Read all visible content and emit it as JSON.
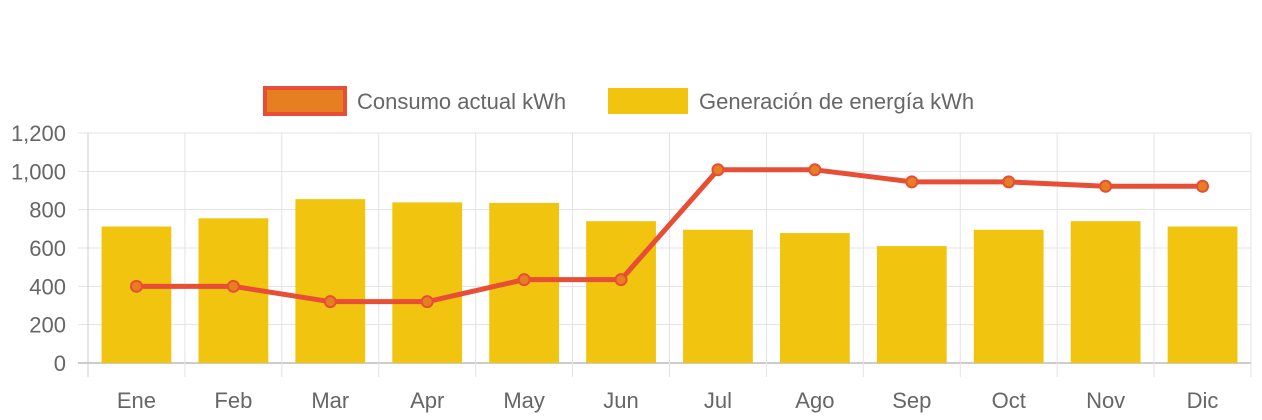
{
  "chart_data": {
    "type": "bar",
    "categories": [
      "Ene",
      "Feb",
      "Mar",
      "Apr",
      "May",
      "Jun",
      "Jul",
      "Ago",
      "Sep",
      "Oct",
      "Nov",
      "Dic"
    ],
    "series": [
      {
        "name": "Consumo actual kWh",
        "type": "line",
        "color": "#e84e36",
        "point_fill": "#e67e22",
        "values": [
          400,
          400,
          320,
          320,
          435,
          435,
          1008,
          1008,
          945,
          945,
          922,
          922
        ]
      },
      {
        "name": "Generación de energía kWh",
        "type": "bar",
        "color": "#f1c40f",
        "values": [
          712,
          755,
          855,
          838,
          835,
          740,
          695,
          678,
          610,
          695,
          740,
          712
        ]
      }
    ],
    "yticks": [
      "0",
      "200",
      "400",
      "600",
      "800",
      "1,000",
      "1,200"
    ],
    "ylim": [
      0,
      1200
    ],
    "grid": true,
    "legend_position": "top-center"
  }
}
